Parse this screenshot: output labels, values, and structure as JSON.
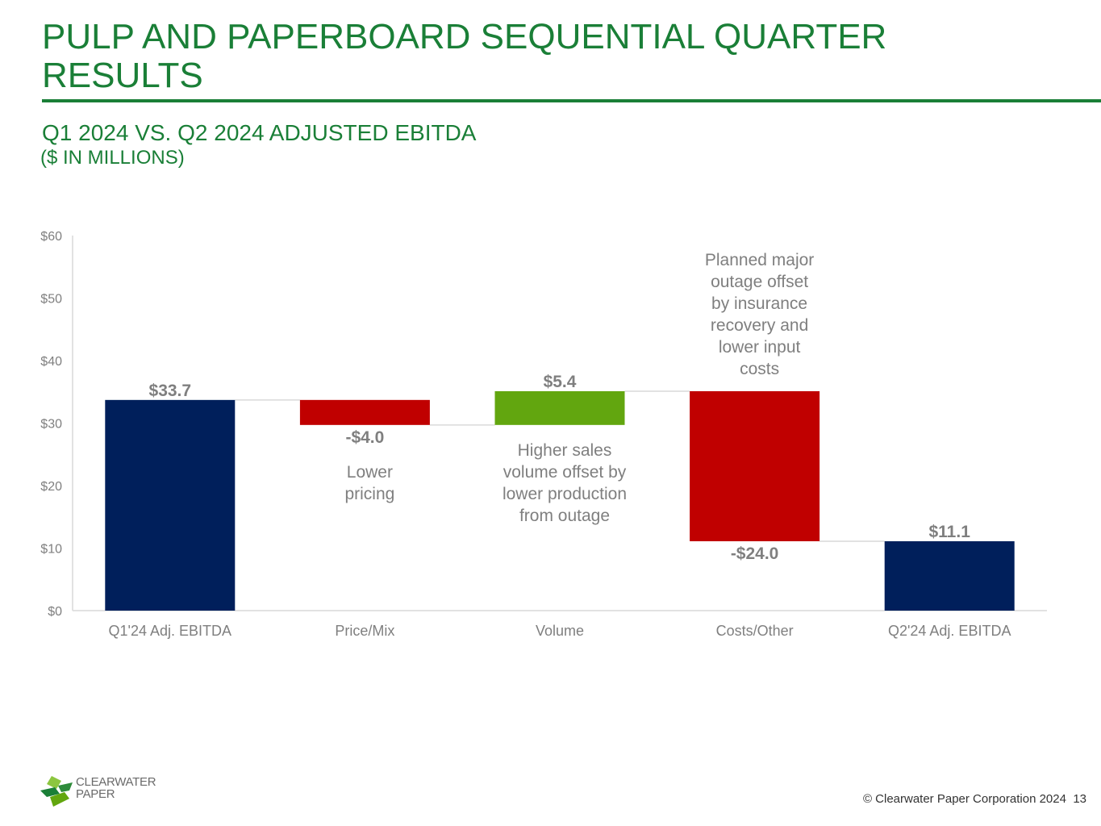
{
  "header": {
    "title": "PULP AND PAPERBOARD SEQUENTIAL QUARTER RESULTS",
    "subtitle": "Q1 2024 VS. Q2 2024 ADJUSTED EBITDA",
    "units": "($ IN MILLIONS)"
  },
  "chart_data": {
    "type": "bar",
    "subtype": "waterfall",
    "categories": [
      "Q1'24 Adj. EBITDA",
      "Price/Mix",
      "Volume",
      "Costs/Other",
      "Q2'24 Adj. EBITDA"
    ],
    "values": [
      33.7,
      -4.0,
      5.4,
      -24.0,
      11.1
    ],
    "bar_kinds": [
      "total",
      "delta",
      "delta",
      "delta",
      "total"
    ],
    "data_labels": [
      "$33.7",
      "-$4.0",
      "$5.4",
      "-$24.0",
      "$11.1"
    ],
    "colors": [
      "#001f5b",
      "#c00000",
      "#62a60f",
      "#c00000",
      "#001f5b"
    ],
    "ylim": [
      0,
      60
    ],
    "yticks": [
      0,
      10,
      20,
      30,
      40,
      50,
      60
    ],
    "ytick_labels": [
      "$0",
      "$10",
      "$20",
      "$30",
      "$40",
      "$50",
      "$60"
    ],
    "grid": false,
    "connector_lines": true,
    "annotations": [
      {
        "category": "Price/Mix",
        "text": "Lower\npricing"
      },
      {
        "category": "Volume",
        "text": "Higher sales\nvolume offset by\nlower production\nfrom outage"
      },
      {
        "category": "Costs/Other",
        "text": "Planned major\noutage offset\nby insurance\nrecovery and\nlower input\ncosts"
      }
    ]
  },
  "logo": {
    "line1": "CLEARWATER",
    "line2": "PAPER"
  },
  "footer": {
    "copyright": "© Clearwater Paper Corporation 2024",
    "page_number": "13"
  }
}
